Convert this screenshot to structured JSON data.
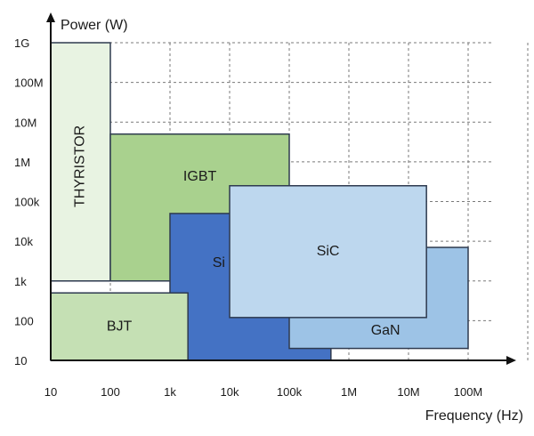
{
  "diagram": {
    "y_axis_title": "Power (W)",
    "x_axis_title": "Frequency (Hz)",
    "y_ticks": [
      "10",
      "100",
      "1k",
      "10k",
      "100k",
      "1M",
      "10M",
      "100M",
      "1G"
    ],
    "x_ticks": [
      "10",
      "100",
      "1k",
      "10k",
      "100k",
      "1M",
      "10M",
      "100M"
    ],
    "regions": [
      {
        "label": "THYRISTOR",
        "color": "#e8f3e2",
        "freq_min_hz": 10,
        "freq_max_hz": 100,
        "power_min_w": 1000,
        "power_max_w": 1000000000
      },
      {
        "label": "IGBT",
        "color": "#a9d18e",
        "freq_min_hz": 100,
        "freq_max_hz": 100000,
        "power_min_w": 1000,
        "power_max_w": 5000000
      },
      {
        "label": "Si MOSFET",
        "color": "#4472c4",
        "freq_min_hz": 1000,
        "freq_max_hz": 500000,
        "power_min_w": 10,
        "power_max_w": 50000
      },
      {
        "label": "GaN",
        "color": "#9dc3e6",
        "freq_min_hz": 100000,
        "freq_max_hz": 100000000,
        "power_min_w": 20,
        "power_max_w": 7000
      },
      {
        "label": "SiC",
        "color": "#bdd7ee",
        "freq_min_hz": 10000,
        "freq_max_hz": 20000000,
        "power_min_w": 120,
        "power_max_w": 250000
      },
      {
        "label": "BJT",
        "color": "#c5e0b4",
        "freq_min_hz": 10,
        "freq_max_hz": 2000,
        "power_min_w": 10,
        "power_max_w": 500
      }
    ]
  }
}
